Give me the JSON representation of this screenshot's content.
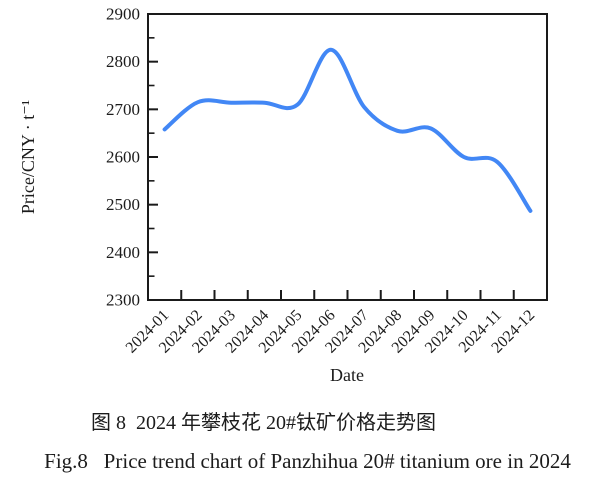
{
  "figure": {
    "background": "#ffffff",
    "text_color": "#1c1c1c"
  },
  "chart_data": {
    "type": "line",
    "title": "",
    "categories": [
      "2024-01",
      "2024-02",
      "2024-03",
      "2024-04",
      "2024-05",
      "2024-06",
      "2024-07",
      "2024-08",
      "2024-09",
      "2024-10",
      "2024-11",
      "2024-12"
    ],
    "values": [
      2658,
      2715,
      2714,
      2714,
      2710,
      2825,
      2705,
      2655,
      2660,
      2600,
      2590,
      2487
    ],
    "xlabel": "Date",
    "ylabel": "Price/CNY · t⁻¹",
    "ylim": [
      2300,
      2900
    ],
    "yticks": [
      2300,
      2400,
      2500,
      2600,
      2700,
      2800,
      2900
    ],
    "y_minor_ticks": [
      2350,
      2450,
      2550,
      2650,
      2750,
      2850
    ],
    "grid": false,
    "legend": "none",
    "line_color": "#4287f5",
    "axis_color": "#1a1a1a"
  },
  "captions": {
    "chinese": "图 8  2024 年攀枝花 20#钛矿价格走势图",
    "english": "Fig.8   Price trend chart of Panzhihua 20# titanium ore in 2024"
  }
}
